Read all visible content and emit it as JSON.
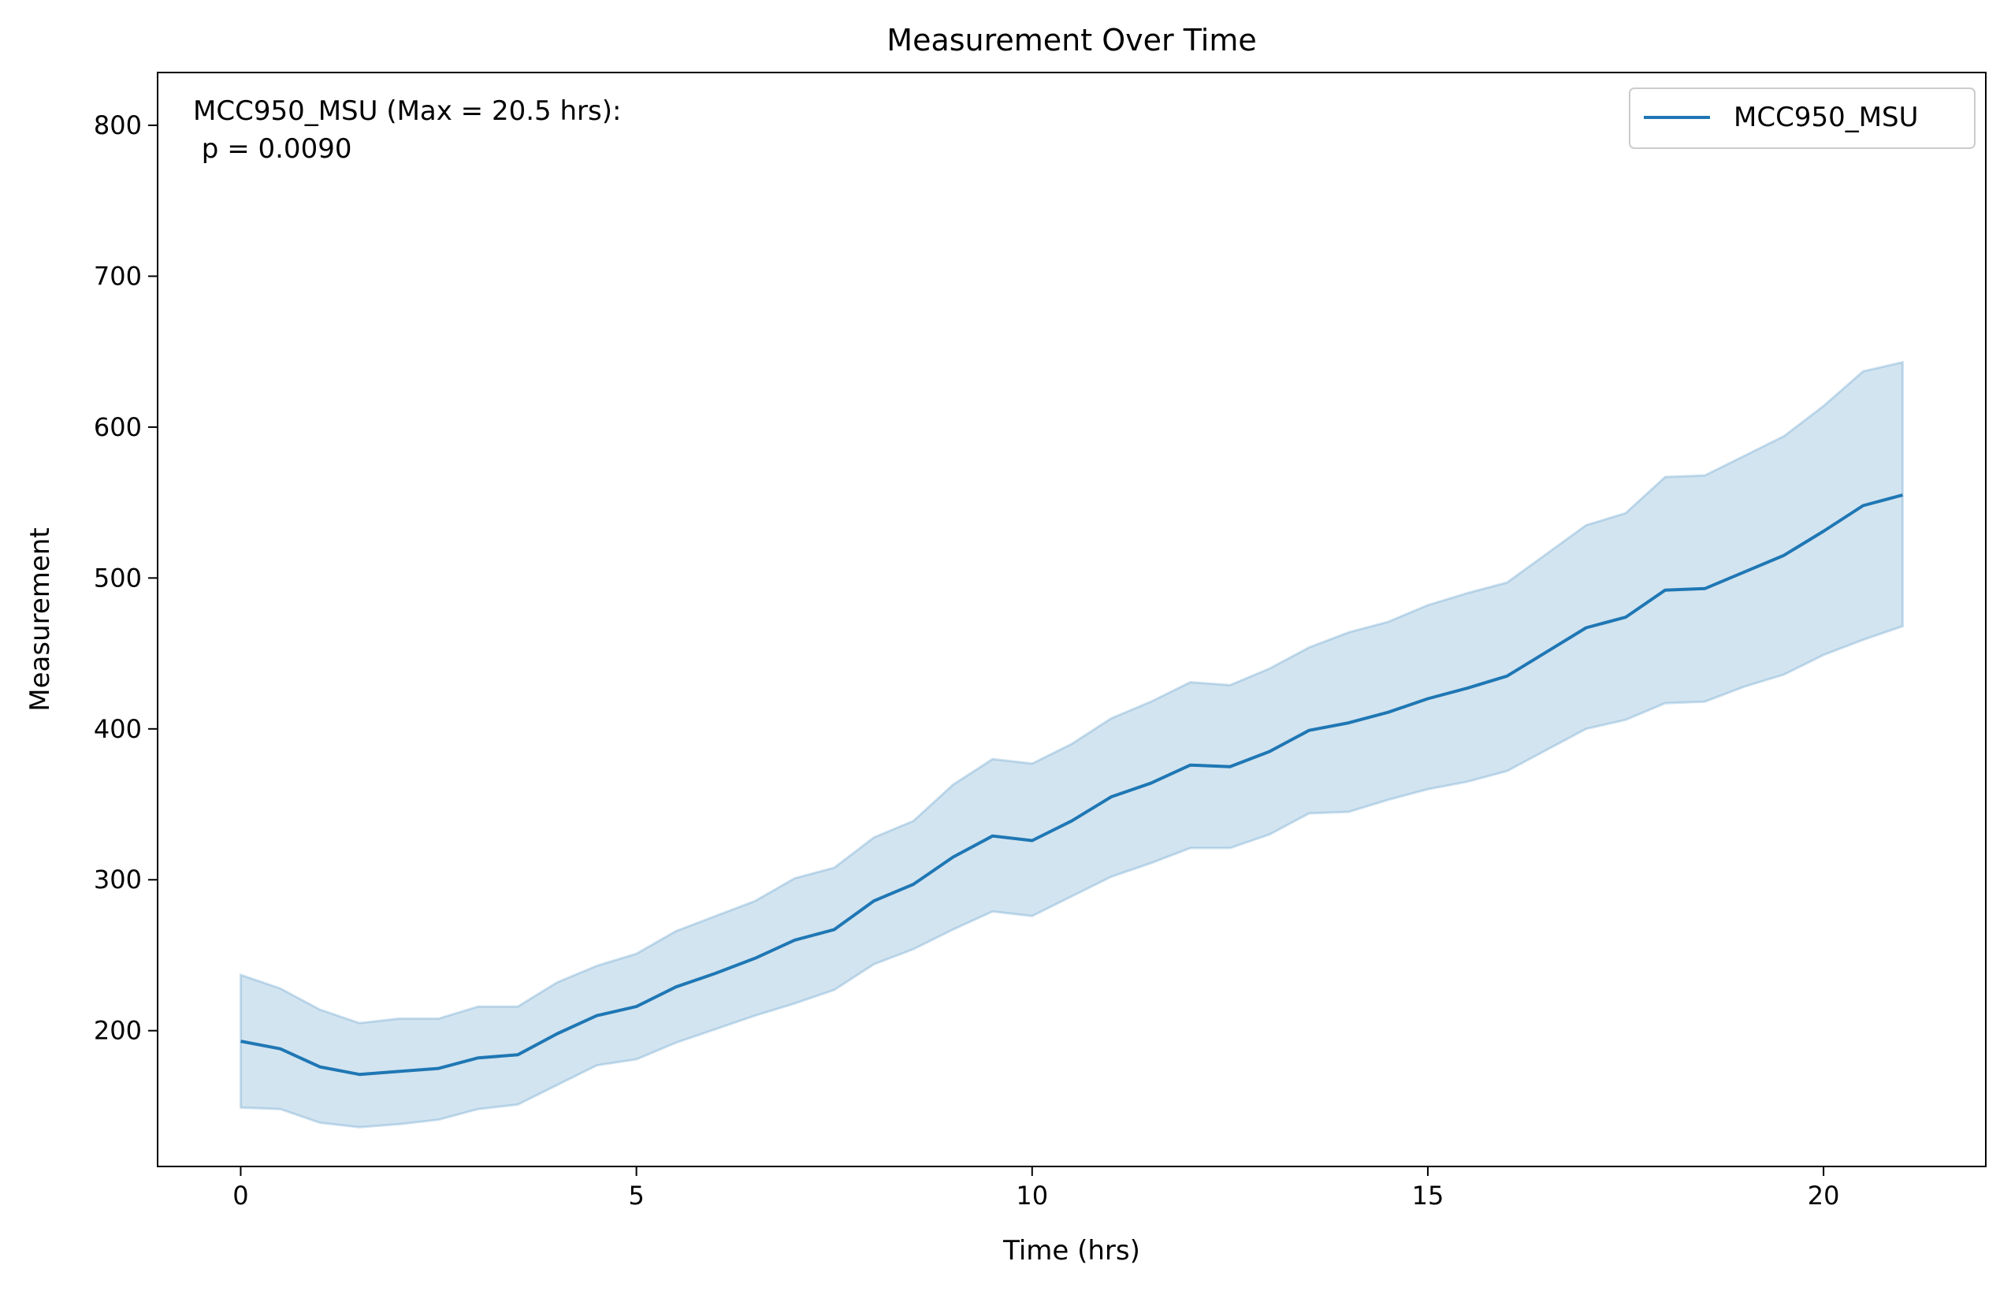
{
  "chart_data": {
    "type": "line",
    "title": "Measurement Over Time",
    "xlabel": "Time (hrs)",
    "ylabel": "Measurement",
    "xlim": [
      -1.05,
      22.05
    ],
    "ylim": [
      110,
      835
    ],
    "xticks": [
      0,
      5,
      10,
      15,
      20
    ],
    "yticks": [
      200,
      300,
      400,
      500,
      600,
      700,
      800
    ],
    "grid": false,
    "legend_position": "top-right",
    "annotation": [
      "MCC950_MSU (Max = 20.5 hrs):",
      " p = 0.0090"
    ],
    "colors": {
      "line": "#1f77b4",
      "band": "#1f77b4"
    },
    "x": [
      0,
      0.5,
      1,
      1.5,
      2,
      2.5,
      3,
      3.5,
      4,
      4.5,
      5,
      5.5,
      6,
      6.5,
      7,
      7.5,
      8,
      8.5,
      9,
      9.5,
      10,
      10.5,
      11,
      11.5,
      12,
      12.5,
      13,
      13.5,
      14,
      14.5,
      15,
      15.5,
      16,
      16.5,
      17,
      17.5,
      18,
      18.5,
      19,
      19.5,
      20,
      20.5,
      21
    ],
    "series": [
      {
        "name": "MCC950_MSU",
        "values": [
          193,
          188,
          176,
          171,
          173,
          175,
          182,
          184,
          198,
          210,
          216,
          229,
          238,
          248,
          260,
          267,
          286,
          297,
          315,
          329,
          326,
          339,
          355,
          364,
          376,
          375,
          385,
          399,
          404,
          411,
          420,
          427,
          435,
          451,
          467,
          474,
          492,
          493,
          504,
          515,
          531,
          548,
          555
        ],
        "lower": [
          149,
          148,
          139,
          136,
          138,
          141,
          148,
          151,
          164,
          177,
          181,
          192,
          201,
          210,
          218,
          227,
          244,
          254,
          267,
          279,
          276,
          289,
          302,
          311,
          321,
          321,
          330,
          344,
          345,
          353,
          360,
          365,
          372,
          386,
          400,
          406,
          417,
          418,
          428,
          436,
          449,
          459,
          468
        ],
        "upper": [
          237,
          228,
          214,
          205,
          208,
          208,
          216,
          216,
          232,
          243,
          251,
          266,
          276,
          286,
          301,
          308,
          328,
          339,
          363,
          380,
          377,
          390,
          407,
          418,
          431,
          429,
          440,
          454,
          464,
          471,
          482,
          490,
          497,
          516,
          535,
          543,
          567,
          568,
          581,
          594,
          614,
          637,
          643
        ]
      }
    ]
  }
}
